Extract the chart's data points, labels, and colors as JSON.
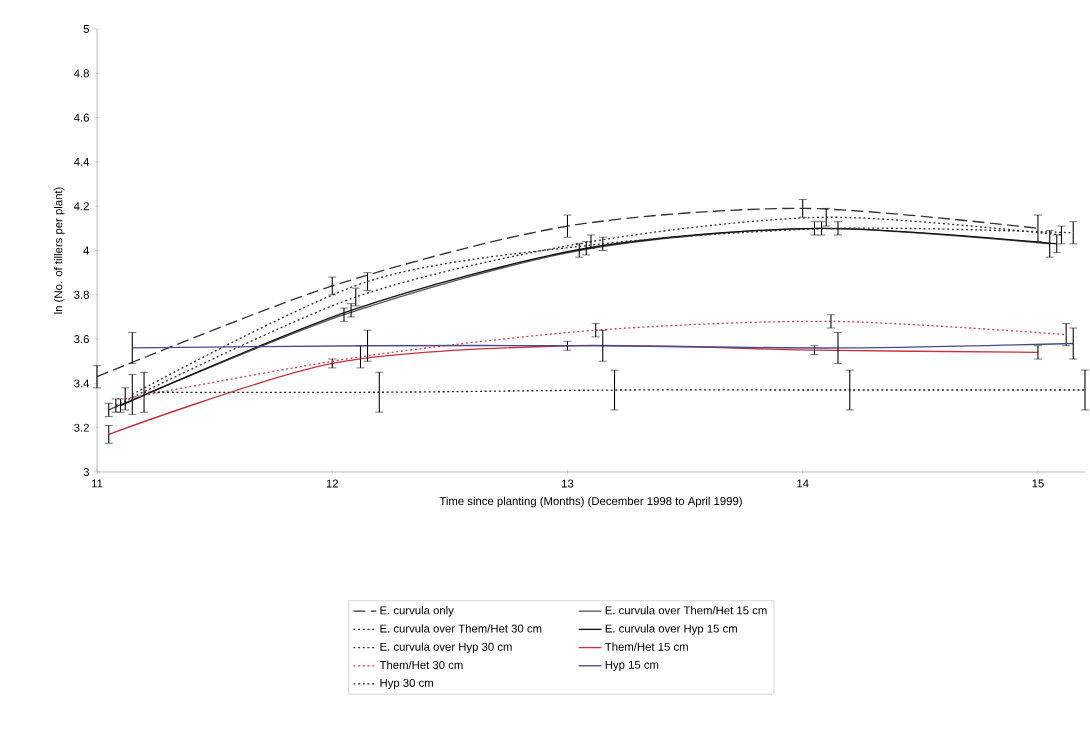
{
  "chart_data": {
    "type": "line",
    "xlabel": "Time since planting (Months) (December 1998 to April 1999)",
    "ylabel": "ln (No. of tillers per plant)",
    "xlim": [
      11,
      15.2
    ],
    "ylim": [
      3,
      5
    ],
    "xticks": [
      11,
      12,
      13,
      14,
      15
    ],
    "yticks": [
      3,
      3.2,
      3.4,
      3.6,
      3.8,
      4,
      4.2,
      4.4,
      4.6,
      4.8,
      5
    ],
    "legend": "bottom",
    "series": [
      {
        "name": "E. curvula only",
        "color": "#333333",
        "line_style": "dashed",
        "x": [
          11,
          12,
          13,
          14,
          15
        ],
        "values": [
          3.43,
          3.84,
          4.11,
          4.19,
          4.1
        ],
        "errors": [
          0.05,
          0.04,
          0.05,
          0.04,
          0.06
        ]
      },
      {
        "name": "E. curvula over Them/Het 15 cm",
        "color": "#555555",
        "line_style": "solid",
        "x": [
          11.05,
          12.05,
          13.05,
          14.05,
          15.05
        ],
        "values": [
          3.28,
          3.71,
          4.0,
          4.1,
          4.03
        ],
        "errors": [
          0.03,
          0.03,
          0.03,
          0.03,
          0.06
        ]
      },
      {
        "name": "E. curvula over Them/Het 30 cm",
        "color": "#333333",
        "line_style": "dotted",
        "x": [
          11.08,
          12.1,
          13.1,
          14.1,
          15.1
        ],
        "values": [
          3.3,
          3.79,
          4.04,
          4.15,
          4.07
        ],
        "errors": [
          0.03,
          0.04,
          0.03,
          0.04,
          0.04
        ]
      },
      {
        "name": "E. curvula over Hyp 15 cm",
        "color": "#111111",
        "line_style": "solid",
        "x": [
          11.1,
          12.08,
          13.08,
          14.08,
          15.08
        ],
        "values": [
          3.3,
          3.73,
          4.01,
          4.1,
          4.03
        ],
        "errors": [
          0.03,
          0.03,
          0.03,
          0.03,
          0.04
        ]
      },
      {
        "name": "E. curvula over Hyp 30 cm",
        "color": "#333333",
        "line_style": "dotted",
        "x": [
          11.15,
          12.15,
          13.15,
          14.15,
          15.15
        ],
        "values": [
          3.35,
          3.86,
          4.03,
          4.1,
          4.08
        ],
        "errors": [
          0.09,
          0.04,
          0.03,
          0.03,
          0.05
        ]
      },
      {
        "name": "Them/Het 15 cm",
        "color": "#c83040",
        "line_style": "solid",
        "x": [
          11.05,
          12.0,
          13.0,
          14.05,
          15.0
        ],
        "values": [
          3.17,
          3.49,
          3.57,
          3.55,
          3.54
        ],
        "errors": [
          0.04,
          0.02,
          0.02,
          0.02,
          0.03
        ]
      },
      {
        "name": "Them/Het 30 cm",
        "color": "#d04050",
        "line_style": "dotted",
        "x": [
          11.12,
          12.12,
          13.12,
          14.12,
          15.12
        ],
        "values": [
          3.33,
          3.52,
          3.64,
          3.68,
          3.62
        ],
        "errors": [
          0.05,
          0.05,
          0.03,
          0.03,
          0.05
        ]
      },
      {
        "name": "Hyp 15 cm",
        "color": "#4a4a8a",
        "line_style": "solid",
        "x": [
          11.15,
          12.15,
          13.15,
          14.15,
          15.15
        ],
        "values": [
          3.56,
          3.57,
          3.57,
          3.56,
          3.58
        ],
        "errors": [
          0.07,
          0.07,
          0.07,
          0.07,
          0.07
        ]
      },
      {
        "name": "Hyp 30 cm",
        "color": "#222222",
        "line_style": "dotted",
        "x": [
          11.2,
          12.2,
          13.2,
          14.2,
          15.2
        ],
        "values": [
          3.36,
          3.36,
          3.37,
          3.37,
          3.37
        ],
        "errors": [
          0.09,
          0.09,
          0.09,
          0.09,
          0.09
        ]
      }
    ]
  }
}
